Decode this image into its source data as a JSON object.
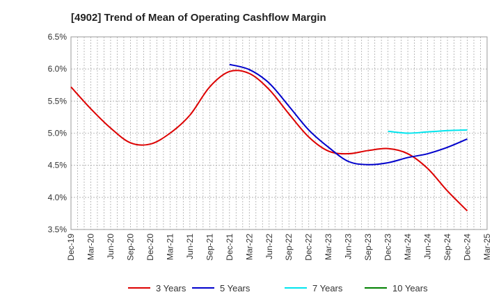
{
  "chart_data": {
    "type": "line",
    "title": "[4902]  Trend of Mean of Operating Cashflow Margin",
    "xlabel": "",
    "ylabel": "",
    "ylim": [
      3.5,
      6.5
    ],
    "y_ticks": [
      "3.5%",
      "4.0%",
      "4.5%",
      "5.0%",
      "5.5%",
      "6.0%",
      "6.5%"
    ],
    "x_ticks": [
      "Dec-19",
      "Mar-20",
      "Jun-20",
      "Sep-20",
      "Dec-20",
      "Mar-21",
      "Jun-21",
      "Sep-21",
      "Dec-21",
      "Mar-22",
      "Jun-22",
      "Sep-22",
      "Dec-22",
      "Mar-23",
      "Jun-23",
      "Sep-23",
      "Dec-23",
      "Mar-24",
      "Jun-24",
      "Sep-24",
      "Dec-24",
      "Mar-25"
    ],
    "grid": true,
    "legend_position": "bottom",
    "series": [
      {
        "name": "3 Years",
        "color": "#dd0000",
        "points": [
          [
            "Dec-19",
            5.72
          ],
          [
            "Mar-20",
            5.38
          ],
          [
            "Jun-20",
            5.08
          ],
          [
            "Sep-20",
            4.85
          ],
          [
            "Dec-20",
            4.83
          ],
          [
            "Mar-21",
            5.0
          ],
          [
            "Jun-21",
            5.28
          ],
          [
            "Sep-21",
            5.72
          ],
          [
            "Dec-21",
            5.96
          ],
          [
            "Mar-22",
            5.93
          ],
          [
            "Jun-22",
            5.68
          ],
          [
            "Sep-22",
            5.3
          ],
          [
            "Dec-22",
            4.94
          ],
          [
            "Mar-23",
            4.72
          ],
          [
            "Jun-23",
            4.68
          ],
          [
            "Sep-23",
            4.73
          ],
          [
            "Dec-23",
            4.76
          ],
          [
            "Mar-24",
            4.68
          ],
          [
            "Jun-24",
            4.45
          ],
          [
            "Sep-24",
            4.1
          ],
          [
            "Dec-24",
            3.79
          ]
        ]
      },
      {
        "name": "5 Years",
        "color": "#0000cc",
        "points": [
          [
            "Dec-21",
            6.07
          ],
          [
            "Mar-22",
            5.99
          ],
          [
            "Jun-22",
            5.78
          ],
          [
            "Sep-22",
            5.42
          ],
          [
            "Dec-22",
            5.05
          ],
          [
            "Mar-23",
            4.78
          ],
          [
            "Jun-23",
            4.56
          ],
          [
            "Sep-23",
            4.51
          ],
          [
            "Dec-23",
            4.54
          ],
          [
            "Mar-24",
            4.62
          ],
          [
            "Jun-24",
            4.68
          ],
          [
            "Sep-24",
            4.78
          ],
          [
            "Dec-24",
            4.91
          ]
        ]
      },
      {
        "name": "7 Years",
        "color": "#00e5ee",
        "points": [
          [
            "Dec-23",
            5.03
          ],
          [
            "Mar-24",
            5.0
          ],
          [
            "Jun-24",
            5.02
          ],
          [
            "Sep-24",
            5.04
          ],
          [
            "Dec-24",
            5.05
          ]
        ]
      },
      {
        "name": "10 Years",
        "color": "#008000",
        "points": []
      }
    ]
  }
}
